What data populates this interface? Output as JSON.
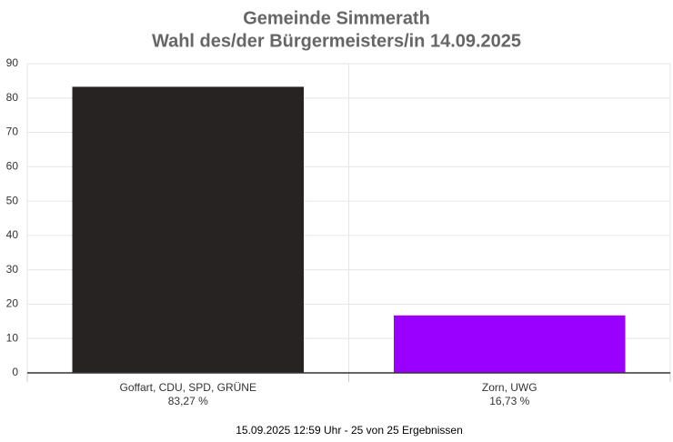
{
  "chart_data": {
    "type": "bar",
    "title": "Gemeinde Simmerath",
    "subtitle": "Wahl des/der Bürgermeisters/in 14.09.2025",
    "categories": [
      "Goffart, CDU, SPD, GRÜNE",
      "Zorn, UWG"
    ],
    "values": [
      83.27,
      16.73
    ],
    "value_labels": [
      "83,27 %",
      "16,73 %"
    ],
    "colors": [
      "#262322",
      "#9900ff"
    ],
    "ylim": [
      0,
      90
    ],
    "yticks": [
      0,
      10,
      20,
      30,
      40,
      50,
      60,
      70,
      80,
      90
    ],
    "grid": true,
    "footer": "15.09.2025 12:59 Uhr - 25 von 25 Ergebnissen"
  }
}
